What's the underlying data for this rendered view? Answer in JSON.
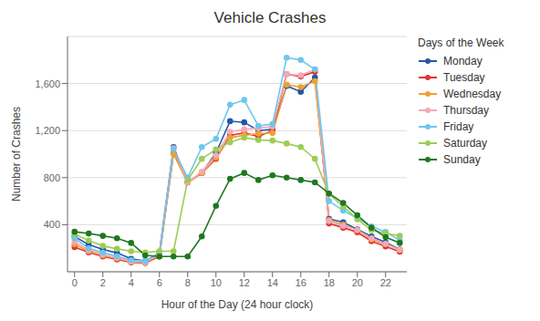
{
  "chart_data": {
    "type": "line",
    "title": "Vehicle Crashes",
    "x_label": "Hour of the Day (24 hour clock)",
    "y_label": "Number of Crashes",
    "legend_title": "Days of the Week",
    "x": [
      0,
      1,
      2,
      3,
      4,
      5,
      6,
      7,
      8,
      9,
      10,
      11,
      12,
      13,
      14,
      15,
      16,
      17,
      18,
      19,
      20,
      21,
      22,
      23
    ],
    "series": [
      {
        "name": "Monday",
        "color": "#2457a7",
        "marker": "o",
        "values": [
          300,
          230,
          190,
          160,
          110,
          90,
          160,
          1060,
          760,
          840,
          1010,
          1280,
          1270,
          1200,
          1210,
          1580,
          1530,
          1650,
          450,
          420,
          360,
          300,
          250,
          190
        ]
      },
      {
        "name": "Tuesday",
        "color": "#e03535",
        "marker": "o",
        "values": [
          210,
          165,
          130,
          105,
          80,
          75,
          130,
          1010,
          760,
          840,
          960,
          1160,
          1180,
          1150,
          1200,
          1680,
          1660,
          1700,
          410,
          375,
          335,
          260,
          215,
          170
        ]
      },
      {
        "name": "Wednesday",
        "color": "#f0a030",
        "marker": "o",
        "values": [
          235,
          175,
          140,
          115,
          85,
          80,
          140,
          1000,
          760,
          840,
          970,
          1140,
          1160,
          1175,
          1180,
          1590,
          1570,
          1620,
          440,
          400,
          355,
          275,
          235,
          185
        ]
      },
      {
        "name": "Thursday",
        "color": "#f4a8b8",
        "marker": "o",
        "values": [
          255,
          185,
          148,
          118,
          88,
          82,
          145,
          1050,
          760,
          850,
          990,
          1190,
          1210,
          1220,
          1235,
          1680,
          1670,
          1720,
          430,
          390,
          355,
          285,
          238,
          188
        ]
      },
      {
        "name": "Friday",
        "color": "#6ec6ee",
        "marker": "o",
        "values": [
          285,
          200,
          162,
          132,
          98,
          90,
          155,
          1040,
          800,
          1060,
          1130,
          1420,
          1460,
          1240,
          1255,
          1820,
          1800,
          1720,
          600,
          520,
          455,
          385,
          338,
          268
        ]
      },
      {
        "name": "Saturday",
        "color": "#9dcd55",
        "marker": "o",
        "values": [
          320,
          265,
          220,
          195,
          175,
          165,
          175,
          175,
          780,
          960,
          1040,
          1100,
          1140,
          1120,
          1115,
          1090,
          1060,
          960,
          660,
          555,
          445,
          355,
          325,
          305
        ]
      },
      {
        "name": "Sunday",
        "color": "#1e7820",
        "marker": "o",
        "values": [
          340,
          325,
          305,
          285,
          245,
          140,
          130,
          130,
          130,
          300,
          560,
          790,
          840,
          780,
          820,
          800,
          780,
          760,
          665,
          585,
          480,
          375,
          295,
          245
        ]
      }
    ],
    "xlim": [
      -0.5,
      23.5
    ],
    "xticks": [
      0,
      2,
      4,
      6,
      8,
      10,
      12,
      14,
      16,
      18,
      20,
      22
    ],
    "ylim": [
      0,
      2000
    ],
    "yticks": [
      400,
      800,
      {
        "value": 1200,
        "label": "1,200"
      },
      {
        "value": 1600,
        "label": "1,600"
      }
    ],
    "grid": true,
    "legend": "right"
  }
}
